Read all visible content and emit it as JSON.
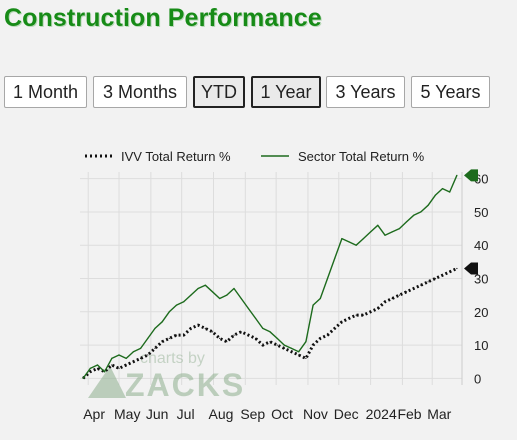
{
  "page": {
    "title": "Construction Performance"
  },
  "range_buttons": [
    {
      "label": "1 Month",
      "active": false
    },
    {
      "label": "3 Months",
      "active": false
    },
    {
      "label": "YTD",
      "active": true
    },
    {
      "label": "1 Year",
      "active": true
    },
    {
      "label": "3 Years",
      "active": false
    },
    {
      "label": "5 Years",
      "active": false
    }
  ],
  "watermark": {
    "line1": "charts by",
    "line2": "ZACKS"
  },
  "colors": {
    "title": "#178b17",
    "sector": "#1d6b1d",
    "ivv": "#111111",
    "grid": "#dddddd"
  },
  "chart_data": {
    "type": "line",
    "xlabel": "",
    "ylabel": "",
    "ylim": [
      -2,
      62
    ],
    "yticks": [
      0,
      10,
      20,
      30,
      40,
      50,
      60
    ],
    "x_tick_labels": [
      "Apr",
      "May",
      "Jun",
      "Jul",
      "Aug",
      "Sep",
      "Oct",
      "Nov",
      "Dec",
      "2024",
      "Feb",
      "Mar"
    ],
    "grid": true,
    "legend_position": "top",
    "series": [
      {
        "name": "IVV Total Return %",
        "style": "dotted",
        "color": "#111111",
        "end_marker_value": 33,
        "x": [
          "2023-03-27",
          "2023-04-03",
          "2023-04-10",
          "2023-04-17",
          "2023-04-24",
          "2023-05-01",
          "2023-05-08",
          "2023-05-15",
          "2023-05-22",
          "2023-05-29",
          "2023-06-05",
          "2023-06-12",
          "2023-06-19",
          "2023-06-26",
          "2023-07-03",
          "2023-07-10",
          "2023-07-17",
          "2023-07-24",
          "2023-07-31",
          "2023-08-07",
          "2023-08-14",
          "2023-08-21",
          "2023-08-28",
          "2023-09-04",
          "2023-09-11",
          "2023-09-18",
          "2023-09-25",
          "2023-10-02",
          "2023-10-09",
          "2023-10-16",
          "2023-10-23",
          "2023-10-30",
          "2023-11-06",
          "2023-11-13",
          "2023-11-20",
          "2023-11-27",
          "2023-12-04",
          "2023-12-11",
          "2023-12-18",
          "2023-12-25",
          "2024-01-01",
          "2024-01-08",
          "2024-01-15",
          "2024-01-22",
          "2024-01-29",
          "2024-02-05",
          "2024-02-12",
          "2024-02-19",
          "2024-02-26",
          "2024-03-04",
          "2024-03-11",
          "2024-03-18",
          "2024-03-25"
        ],
        "values": [
          0,
          2,
          3,
          2,
          4,
          3,
          4,
          5,
          6,
          7,
          9,
          11,
          12,
          13,
          13,
          15,
          16,
          15,
          14,
          12,
          11,
          13,
          14,
          13,
          12,
          10,
          11,
          10,
          9,
          8,
          7,
          6,
          10,
          12,
          13,
          15,
          17,
          18,
          19,
          19,
          20,
          21,
          23,
          24,
          25,
          26,
          27,
          28,
          29,
          30,
          31,
          32,
          33
        ]
      },
      {
        "name": "Sector Total Return %",
        "style": "solid",
        "color": "#1d6b1d",
        "end_marker_value": 61,
        "x": [
          "2023-03-27",
          "2023-04-03",
          "2023-04-10",
          "2023-04-17",
          "2023-04-24",
          "2023-05-01",
          "2023-05-08",
          "2023-05-15",
          "2023-05-22",
          "2023-05-29",
          "2023-06-05",
          "2023-06-12",
          "2023-06-19",
          "2023-06-26",
          "2023-07-03",
          "2023-07-10",
          "2023-07-17",
          "2023-07-24",
          "2023-07-31",
          "2023-08-07",
          "2023-08-14",
          "2023-08-21",
          "2023-08-28",
          "2023-09-04",
          "2023-09-11",
          "2023-09-18",
          "2023-09-25",
          "2023-10-02",
          "2023-10-09",
          "2023-10-16",
          "2023-10-23",
          "2023-10-30",
          "2023-11-06",
          "2023-11-13",
          "2023-11-20",
          "2023-11-27",
          "2023-12-04",
          "2023-12-11",
          "2023-12-18",
          "2023-12-25",
          "2024-01-01",
          "2024-01-08",
          "2024-01-15",
          "2024-01-22",
          "2024-01-29",
          "2024-02-05",
          "2024-02-12",
          "2024-02-19",
          "2024-02-26",
          "2024-03-04",
          "2024-03-11",
          "2024-03-18",
          "2024-03-25"
        ],
        "values": [
          0,
          3,
          4,
          2,
          6,
          7,
          6,
          8,
          9,
          12,
          15,
          17,
          20,
          22,
          23,
          25,
          27,
          28,
          26,
          24,
          25,
          27,
          24,
          21,
          18,
          15,
          14,
          12,
          10,
          9,
          8,
          11,
          22,
          24,
          30,
          36,
          42,
          41,
          40,
          42,
          44,
          46,
          43,
          44,
          45,
          47,
          49,
          50,
          52,
          55,
          57,
          56,
          61
        ]
      }
    ]
  }
}
